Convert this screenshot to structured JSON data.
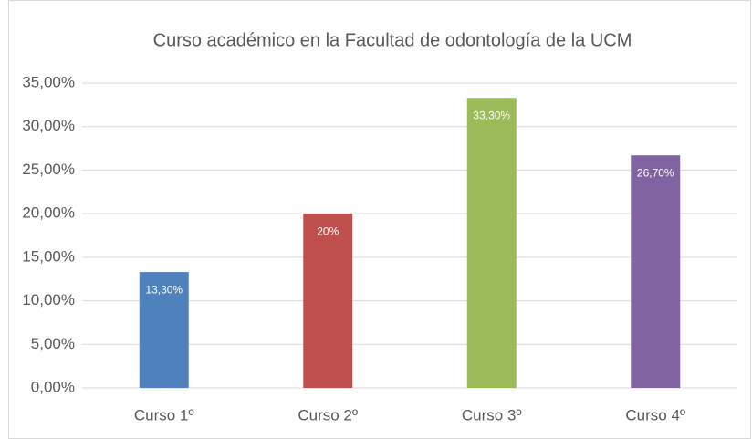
{
  "chart_data": {
    "type": "bar",
    "title": "Curso académico en la Facultad de odontología de la UCM",
    "categories": [
      "Curso 1º",
      "Curso 2º",
      "Curso 3º",
      "Curso 4º"
    ],
    "values": [
      13.3,
      20,
      33.3,
      26.7
    ],
    "value_labels": [
      "13,30%",
      "20%",
      "33,30%",
      "26,70%"
    ],
    "colors": [
      "#4f81bd",
      "#c0504d",
      "#9bbb59",
      "#8064a2"
    ],
    "ylim": [
      0,
      35
    ],
    "yticks": [
      {
        "value": 0,
        "label": "0,00%"
      },
      {
        "value": 5,
        "label": "5,00%"
      },
      {
        "value": 10,
        "label": "10,00%"
      },
      {
        "value": 15,
        "label": "15,00%"
      },
      {
        "value": 20,
        "label": "20,00%"
      },
      {
        "value": 25,
        "label": "25,00%"
      },
      {
        "value": 30,
        "label": "30,00%"
      },
      {
        "value": 35,
        "label": "35,00%"
      }
    ],
    "grid": true
  }
}
